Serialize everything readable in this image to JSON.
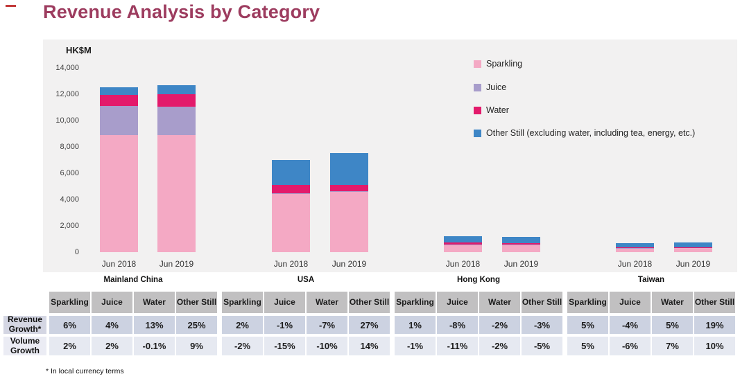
{
  "title": "Revenue Analysis by Category",
  "footnote": "* In local currency terms",
  "accent_color": "#9d3c5f",
  "chart_data": {
    "type": "bar",
    "stacked": true,
    "title": "Revenue Analysis by Category",
    "unit_label": "HK$M",
    "ylabel": "HK$M",
    "xlabel": "",
    "ylim": [
      0,
      14000
    ],
    "grid": false,
    "legend_position": "top-right",
    "yticks": [
      "14,000",
      "12,000",
      "10,000",
      "8,000",
      "6,000",
      "4,000",
      "2,000",
      "0"
    ],
    "series_order": [
      "Sparkling",
      "Juice",
      "Water",
      "Other Still"
    ],
    "series_colors": {
      "Sparkling": "#f4a9c4",
      "Juice": "#a89dcb",
      "Water": "#e31a6b",
      "Other Still": "#3e86c6"
    },
    "legend": [
      "Sparkling",
      "Juice",
      "Water",
      "Other Still (excluding water, including tea, energy, etc.)"
    ],
    "groups": [
      {
        "name": "Mainland China",
        "bars": [
          {
            "label": "Jun 2018",
            "values": {
              "Sparkling": 8900,
              "Juice": 2200,
              "Water": 850,
              "Other Still": 550
            }
          },
          {
            "label": "Jun 2019",
            "values": {
              "Sparkling": 8900,
              "Juice": 2150,
              "Water": 950,
              "Other Still": 650
            }
          }
        ]
      },
      {
        "name": "USA",
        "bars": [
          {
            "label": "Jun 2018",
            "values": {
              "Sparkling": 4450,
              "Juice": 50,
              "Water": 600,
              "Other Still": 1900
            }
          },
          {
            "label": "Jun 2019",
            "values": {
              "Sparkling": 4600,
              "Juice": 50,
              "Water": 450,
              "Other Still": 2400
            }
          }
        ]
      },
      {
        "name": "Hong Kong",
        "bars": [
          {
            "label": "Jun 2018",
            "values": {
              "Sparkling": 550,
              "Juice": 30,
              "Water": 150,
              "Other Still": 470
            }
          },
          {
            "label": "Jun 2019",
            "values": {
              "Sparkling": 530,
              "Juice": 30,
              "Water": 140,
              "Other Still": 450
            }
          }
        ]
      },
      {
        "name": "Taiwan",
        "bars": [
          {
            "label": "Jun 2018",
            "values": {
              "Sparkling": 280,
              "Juice": 40,
              "Water": 20,
              "Other Still": 330
            }
          },
          {
            "label": "Jun 2019",
            "values": {
              "Sparkling": 310,
              "Juice": 40,
              "Water": 20,
              "Other Still": 350
            }
          }
        ]
      }
    ]
  },
  "table": {
    "row_headers": [
      "Revenue Growth*",
      "Volume Growth"
    ],
    "column_headers": [
      "Sparkling",
      "Juice",
      "Water",
      "Other Still"
    ],
    "groups": [
      {
        "name": "Mainland China",
        "revenue_growth": [
          "6%",
          "4%",
          "13%",
          "25%"
        ],
        "volume_growth": [
          "2%",
          "2%",
          "-0.1%",
          "9%"
        ]
      },
      {
        "name": "USA",
        "revenue_growth": [
          "2%",
          "-1%",
          "-7%",
          "27%"
        ],
        "volume_growth": [
          "-2%",
          "-15%",
          "-10%",
          "14%"
        ]
      },
      {
        "name": "Hong Kong",
        "revenue_growth": [
          "1%",
          "-8%",
          "-2%",
          "-3%"
        ],
        "volume_growth": [
          "-1%",
          "-11%",
          "-2%",
          "-5%"
        ]
      },
      {
        "name": "Taiwan",
        "revenue_growth": [
          "5%",
          "-4%",
          "5%",
          "19%"
        ],
        "volume_growth": [
          "5%",
          "-6%",
          "7%",
          "10%"
        ]
      }
    ]
  }
}
